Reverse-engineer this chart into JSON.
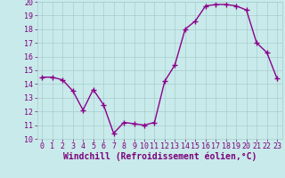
{
  "x": [
    0,
    1,
    2,
    3,
    4,
    5,
    6,
    7,
    8,
    9,
    10,
    11,
    12,
    13,
    14,
    15,
    16,
    17,
    18,
    19,
    20,
    21,
    22,
    23
  ],
  "y": [
    14.5,
    14.5,
    14.3,
    13.5,
    12.1,
    13.6,
    12.5,
    10.4,
    11.2,
    11.1,
    11.0,
    11.2,
    14.2,
    15.4,
    18.0,
    18.6,
    19.7,
    19.8,
    19.8,
    19.7,
    19.4,
    17.0,
    16.3,
    14.4
  ],
  "line_color": "#8b008b",
  "marker": "+",
  "markersize": 4,
  "linewidth": 1.0,
  "xlabel": "Windchill (Refroidissement éolien,°C)",
  "xlabel_fontsize": 7,
  "ylim": [
    10,
    20
  ],
  "xlim": [
    -0.5,
    23.5
  ],
  "yticks": [
    10,
    11,
    12,
    13,
    14,
    15,
    16,
    17,
    18,
    19,
    20
  ],
  "xticks": [
    0,
    1,
    2,
    3,
    4,
    5,
    6,
    7,
    8,
    9,
    10,
    11,
    12,
    13,
    14,
    15,
    16,
    17,
    18,
    19,
    20,
    21,
    22,
    23
  ],
  "bg_color": "#c8eaea",
  "grid_color": "#a8cccc",
  "tick_fontsize": 6,
  "tick_color": "#7b007b",
  "axis_label_color": "#7b007b",
  "markeredgewidth": 1.0
}
